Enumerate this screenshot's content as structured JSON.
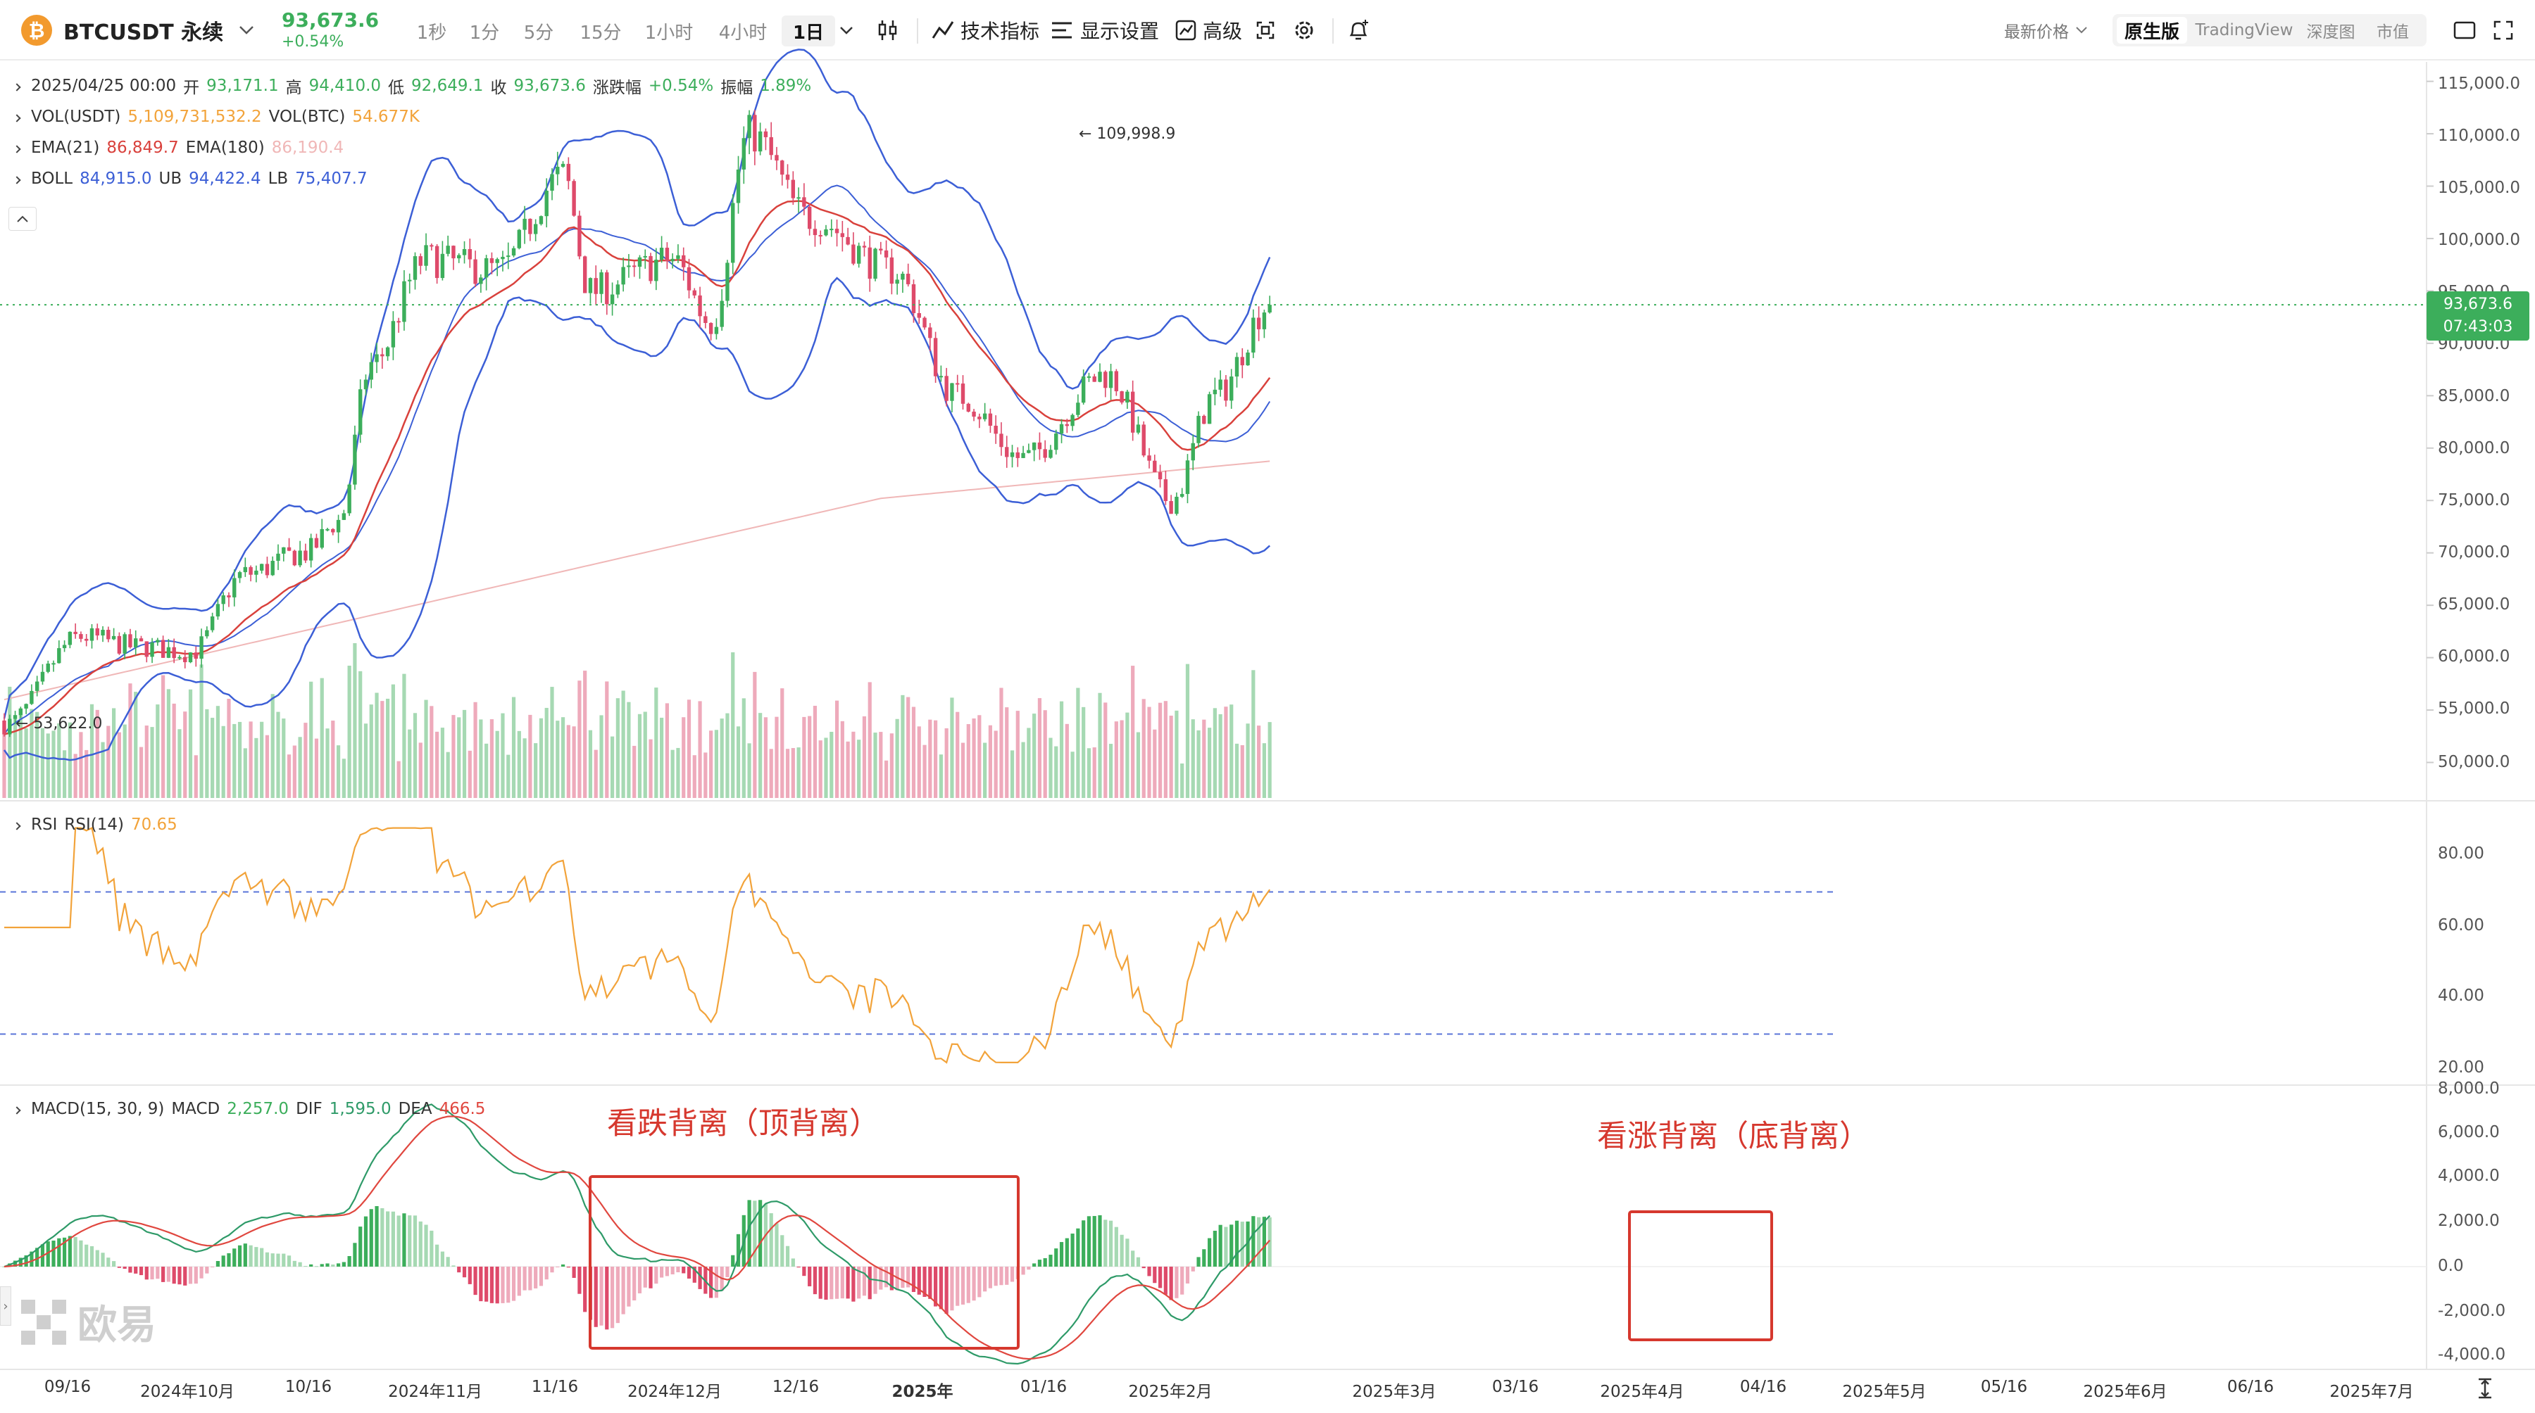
{
  "toolbar": {
    "symbol": "BTCUSDT 永续",
    "price": "93,673.6",
    "change_pct": "+0.54%",
    "timeframes": [
      "1秒",
      "1分",
      "5分",
      "15分",
      "1小时",
      "4小时",
      "1日"
    ],
    "active_timeframe": "1日",
    "indicators_label": "技术指标",
    "display_label": "显示设置",
    "advanced_label": "高级",
    "price_type": "最新价格",
    "views": [
      "原生版",
      "TradingView",
      "深度图",
      "市值"
    ],
    "active_view": "原生版"
  },
  "legend": {
    "ohlc": {
      "date": "2025/04/25 00:00",
      "open_label": "开",
      "open": "93,171.1",
      "high_label": "高",
      "high": "94,410.0",
      "low_label": "低",
      "low": "92,649.1",
      "close_label": "收",
      "close": "93,673.6",
      "chg_label": "涨跌幅",
      "chg": "+0.54%",
      "amp_label": "振幅",
      "amp": "1.89%"
    },
    "vol": {
      "label1": "VOL(USDT)",
      "value1": "5,109,731,532.2",
      "label2": "VOL(BTC)",
      "value2": "54.677K"
    },
    "ema": {
      "label1": "EMA(21)",
      "value1": "86,849.7",
      "label2": "EMA(180)",
      "value2": "86,190.4"
    },
    "boll": {
      "label": "BOLL",
      "value": "84,915.0",
      "ub_label": "UB",
      "ub": "94,422.4",
      "lb_label": "LB",
      "lb": "75,407.7"
    },
    "rsi": {
      "label": "RSI",
      "label2": "RSI(14)",
      "value": "70.65"
    },
    "macd": {
      "label": "MACD(15, 30, 9)",
      "macd_label": "MACD",
      "macd": "2,257.0",
      "dif_label": "DIF",
      "dif": "1,595.0",
      "dea_label": "DEA",
      "dea": "466.5"
    }
  },
  "price_axis": [
    "115,000.0",
    "110,000.0",
    "105,000.0",
    "100,000.0",
    "95,000.0",
    "90,000.0",
    "85,000.0",
    "80,000.0",
    "75,000.0",
    "70,000.0",
    "65,000.0",
    "60,000.0",
    "55,000.0",
    "50,000.0"
  ],
  "rsi_axis": [
    "80.00",
    "60.00",
    "40.00",
    "20.00"
  ],
  "macd_axis": [
    "8,000.0",
    "6,000.0",
    "4,000.0",
    "2,000.0",
    "0.0",
    "-2,000.0",
    "-4,000.0"
  ],
  "current_price_tag": {
    "price": "93,673.6",
    "countdown": "07:43:03"
  },
  "extremes": {
    "high": "109,998.9",
    "low": "53,622.0"
  },
  "time_axis": [
    "09/16",
    "2024年10月",
    "10/16",
    "2024年11月",
    "11/16",
    "2024年12月",
    "12/16",
    "2025年",
    "01/16",
    "2025年2月",
    "2025年3月",
    "03/16",
    "2025年4月",
    "04/16",
    "2025年5月",
    "05/16",
    "2025年6月",
    "06/16",
    "2025年7月"
  ],
  "annotations": {
    "bearish": "看跌背离（顶背离）",
    "bullish": "看涨背离（底背离）"
  },
  "watermark": "欧易",
  "colors": {
    "up": "#3cae5b",
    "down": "#de4a6a",
    "ema21": "#d9413c",
    "ema180": "#f0b7b7",
    "boll": "#3c5fd6",
    "rsi": "#f2a33a",
    "dif": "#2e9a68",
    "dea": "#e0473f",
    "accent": "#3cae5b",
    "annotation": "#d6382e"
  },
  "chart_data": {
    "type": "candlestick",
    "symbol": "BTCUSDT",
    "interval": "1日",
    "price_range": [
      50000,
      115000
    ],
    "close_path": [
      [
        "2024-09-06",
        53622
      ],
      [
        "2024-09-20",
        62000
      ],
      [
        "2024-10-01",
        61000
      ],
      [
        "2024-10-10",
        60500
      ],
      [
        "2024-10-20",
        68000
      ],
      [
        "2024-10-31",
        70000
      ],
      [
        "2024-11-06",
        73000
      ],
      [
        "2024-11-12",
        88000
      ],
      [
        "2024-11-22",
        98000
      ],
      [
        "2024-12-05",
        97000
      ],
      [
        "2024-12-17",
        106000
      ],
      [
        "2024-12-22",
        95000
      ],
      [
        "2025-01-06",
        98000
      ],
      [
        "2025-01-13",
        92000
      ],
      [
        "2025-01-20",
        109998.9
      ],
      [
        "2025-01-31",
        102000
      ],
      [
        "2025-02-15",
        97000
      ],
      [
        "2025-02-27",
        85000
      ],
      [
        "2025-03-11",
        79000
      ],
      [
        "2025-03-26",
        87000
      ],
      [
        "2025-04-07",
        75000
      ],
      [
        "2025-04-15",
        85000
      ],
      [
        "2025-04-25",
        93673.6
      ]
    ],
    "rsi_levels": [
      70,
      30
    ],
    "rsi_range": [
      20,
      90
    ],
    "macd_range": [
      -4000,
      8000
    ]
  }
}
